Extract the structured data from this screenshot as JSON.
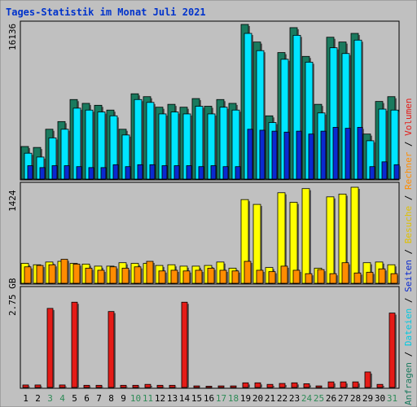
{
  "title": "Tages-Statistik im Monat Juli 2021",
  "colors": {
    "frame": "#c0c0c0",
    "plot_bg": "#c0c0c0",
    "title": "#0033cc",
    "anfragen": "#1a7a5e",
    "dateien": "#00e5ff",
    "seiten": "#0a2ad0",
    "besuche": "#ffff00",
    "rechner": "#ff8c00",
    "volumen": "#e41b17",
    "weekend_label": "#2e8b57",
    "weekday_label": "#000000"
  },
  "right_legend": {
    "top": [
      {
        "text": "Anfragen",
        "color": "#1a7a5e"
      },
      {
        "text": " / ",
        "color": "#000000"
      },
      {
        "text": "Dateien",
        "color": "#00c8e0"
      },
      {
        "text": " / ",
        "color": "#000000"
      },
      {
        "text": "Seiten",
        "color": "#0a2ad0"
      },
      {
        "text": " / ",
        "color": "#000000"
      },
      {
        "text": "Besuche",
        "color": "#e0c000"
      },
      {
        "text": " / ",
        "color": "#000000"
      },
      {
        "text": "Rechner",
        "color": "#ff8c00"
      },
      {
        "text": " / ",
        "color": "#000000"
      },
      {
        "text": "Volumen",
        "color": "#e41b17"
      }
    ]
  },
  "chart_data": [
    {
      "type": "bar",
      "ymax_label": "16136",
      "ylim": [
        0,
        16136
      ],
      "x": [
        1,
        2,
        3,
        4,
        5,
        6,
        7,
        8,
        9,
        10,
        11,
        12,
        13,
        14,
        15,
        16,
        17,
        18,
        19,
        20,
        21,
        22,
        23,
        24,
        25,
        26,
        27,
        28,
        29,
        30,
        31
      ],
      "weekend_days": [
        3,
        4,
        10,
        11,
        17,
        18,
        24,
        25,
        31
      ],
      "series": [
        {
          "name": "Anfragen",
          "values": [
            3400,
            3300,
            5200,
            6000,
            8300,
            7900,
            7700,
            7200,
            5200,
            8900,
            8600,
            7500,
            7800,
            7500,
            8400,
            7600,
            8300,
            7900,
            16136,
            14300,
            6600,
            13200,
            15800,
            12800,
            7800,
            14800,
            14300,
            15200,
            4700,
            8100,
            8600
          ]
        },
        {
          "name": "Dateien",
          "values": [
            2700,
            2300,
            4300,
            5200,
            7400,
            7200,
            7000,
            6600,
            4600,
            8300,
            8000,
            6800,
            7000,
            6800,
            7600,
            6800,
            7500,
            7200,
            15200,
            13400,
            5900,
            12500,
            15000,
            12200,
            6900,
            13700,
            13100,
            14500,
            4000,
            7300,
            7200
          ]
        },
        {
          "name": "Seiten",
          "values": [
            1400,
            1200,
            1400,
            1400,
            1300,
            1200,
            1200,
            1500,
            1300,
            1500,
            1500,
            1400,
            1400,
            1400,
            1300,
            1400,
            1300,
            1300,
            5200,
            5100,
            5000,
            4900,
            5000,
            4700,
            5000,
            5400,
            5300,
            5400,
            1300,
            1800,
            1500
          ]
        }
      ]
    },
    {
      "type": "bar",
      "ymax_label": "1424",
      "ylim": [
        0,
        1424
      ],
      "series": [
        {
          "name": "Besuche",
          "values": [
            290,
            270,
            310,
            320,
            290,
            280,
            250,
            250,
            300,
            290,
            290,
            260,
            270,
            250,
            250,
            260,
            310,
            220,
            1220,
            1150,
            230,
            1320,
            1180,
            1380,
            220,
            1260,
            1300,
            1400,
            300,
            310,
            270
          ]
        },
        {
          "name": "Rechner",
          "values": [
            240,
            260,
            270,
            350,
            280,
            220,
            190,
            240,
            220,
            240,
            320,
            180,
            190,
            180,
            190,
            220,
            190,
            180,
            320,
            190,
            170,
            250,
            190,
            140,
            200,
            140,
            300,
            150,
            160,
            210,
            140
          ]
        }
      ]
    },
    {
      "type": "bar",
      "ymax_label": "2.75 GB",
      "ylim": [
        0,
        3.15
      ],
      "unit": "GB",
      "series": [
        {
          "name": "Volumen",
          "values": [
            0.08,
            0.08,
            2.55,
            0.08,
            2.75,
            0.07,
            0.07,
            2.45,
            0.07,
            0.07,
            0.1,
            0.07,
            0.07,
            2.75,
            0.05,
            0.04,
            0.05,
            0.05,
            0.15,
            0.15,
            0.1,
            0.13,
            0.15,
            0.12,
            0.05,
            0.18,
            0.18,
            0.18,
            0.5,
            0.1,
            2.4
          ]
        }
      ]
    }
  ]
}
